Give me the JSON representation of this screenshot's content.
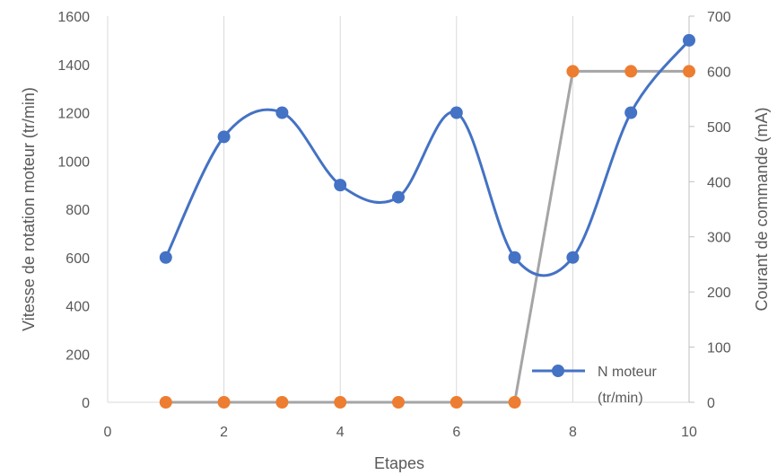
{
  "chart_data": {
    "type": "scatter",
    "xlabel": "Etapes",
    "ylabel_left": "Vitesse de rotation moteur (tr/min)",
    "ylabel_right": "Courant de commande (mA)",
    "xlim": [
      0,
      10
    ],
    "xticks": [
      "0",
      "2",
      "4",
      "6",
      "8",
      "10"
    ],
    "ylim_left": [
      0,
      1600
    ],
    "yticks_left": [
      "0",
      "200",
      "400",
      "600",
      "800",
      "1000",
      "1200",
      "1400",
      "1600"
    ],
    "ylim_right": [
      0,
      700
    ],
    "yticks_right": [
      "0",
      "100",
      "200",
      "300",
      "400",
      "500",
      "600",
      "700"
    ],
    "grid": "vertical",
    "legend_position": "bottom-right",
    "series": [
      {
        "name": "N moteur (tr/min)",
        "legend_line1": "N moteur",
        "legend_line2": "(tr/min)",
        "axis": "left",
        "line_style": "smooth",
        "color": "#4472C4",
        "x": [
          1,
          2,
          3,
          4,
          5,
          6,
          7,
          8,
          9,
          10
        ],
        "y": [
          600,
          1100,
          1200,
          900,
          850,
          1200,
          600,
          600,
          1200,
          1500
        ]
      },
      {
        "axis": "right",
        "line_style": "straight",
        "line_color": "#A5A5A5",
        "marker_color": "#ED7D31",
        "x": [
          1,
          2,
          3,
          4,
          5,
          6,
          7,
          8,
          9,
          10
        ],
        "y": [
          0,
          0,
          0,
          0,
          0,
          0,
          0,
          600,
          600,
          600
        ]
      }
    ]
  }
}
